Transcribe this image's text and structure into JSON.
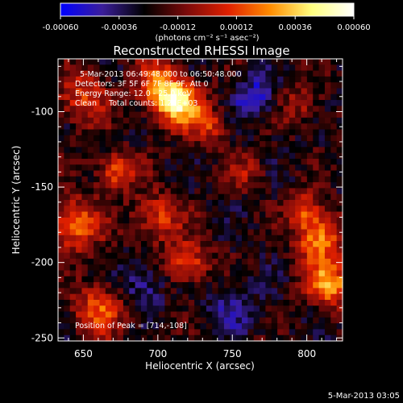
{
  "chart_data": {
    "type": "heatmap",
    "title": "Reconstructed RHESSI Image",
    "xlabel": "Heliocentric X (arcsec)",
    "ylabel": "Heliocentric Y (arcsec)",
    "xlim": [
      633,
      824
    ],
    "ylim": [
      -252,
      -65
    ],
    "x_ticks": [
      "650",
      "700",
      "750",
      "800"
    ],
    "x_tick_values": [
      650,
      700,
      750,
      800
    ],
    "y_ticks": [
      "-100",
      "-150",
      "-200",
      "-250"
    ],
    "y_tick_values": [
      -100,
      -150,
      -200,
      -250
    ],
    "colorbar": {
      "ticks": [
        "-0.00060",
        "-0.00036",
        "-0.00012",
        "0.00012",
        "0.00036",
        "0.00060"
      ],
      "tick_values": [
        -0.0006,
        -0.00036,
        -0.00012,
        0.00012,
        0.00036,
        0.0006
      ],
      "range": [
        -0.0006,
        0.0006
      ],
      "unit_label": "(photons cm⁻² s⁻¹ asec⁻²)",
      "colormap": [
        "#0000ff",
        "#3b1e9a",
        "#000000",
        "#7a0a0a",
        "#e02000",
        "#ff8c00",
        "#ffff80",
        "#ffffff"
      ]
    },
    "annotations": [
      "5-Mar-2013 06:49:48.000 to 06:50:48.000",
      "Detectors: 3F 5F 6F 7F 8F 9F, Att 0",
      "Energy Range: 12.0 - 25.0 keV",
      "Clean     Total counts: 1.20E+03"
    ],
    "peak_label": "Position of Peak = [714,-108]",
    "peak": [
      714,
      -108
    ],
    "sources": [
      {
        "x": 714,
        "y": -95,
        "sigma": 11,
        "amp": 1.05
      },
      {
        "x": 700,
        "y": -82,
        "sigma": 10,
        "amp": 0.7
      },
      {
        "x": 650,
        "y": -90,
        "sigma": 12,
        "amp": 0.55
      },
      {
        "x": 735,
        "y": -110,
        "sigma": 9,
        "amp": 0.45
      },
      {
        "x": 795,
        "y": -95,
        "sigma": 9,
        "amp": 0.35
      },
      {
        "x": 672,
        "y": -140,
        "sigma": 9,
        "amp": 0.65
      },
      {
        "x": 645,
        "y": -175,
        "sigma": 12,
        "amp": 0.7
      },
      {
        "x": 700,
        "y": -170,
        "sigma": 11,
        "amp": 0.55
      },
      {
        "x": 720,
        "y": -200,
        "sigma": 10,
        "amp": 0.6
      },
      {
        "x": 660,
        "y": -232,
        "sigma": 12,
        "amp": 0.6
      },
      {
        "x": 808,
        "y": -185,
        "sigma": 11,
        "amp": 0.8
      },
      {
        "x": 815,
        "y": -215,
        "sigma": 10,
        "amp": 0.9
      },
      {
        "x": 800,
        "y": -165,
        "sigma": 8,
        "amp": 0.55
      },
      {
        "x": 760,
        "y": -140,
        "sigma": 9,
        "amp": 0.3
      },
      {
        "x": 765,
        "y": -90,
        "sigma": 10,
        "amp": -0.45
      },
      {
        "x": 690,
        "y": -215,
        "sigma": 10,
        "amp": -0.35
      },
      {
        "x": 750,
        "y": -230,
        "sigma": 12,
        "amp": -0.3
      }
    ]
  },
  "footer": {
    "timestamp": "5-Mar-2013 03:05"
  }
}
